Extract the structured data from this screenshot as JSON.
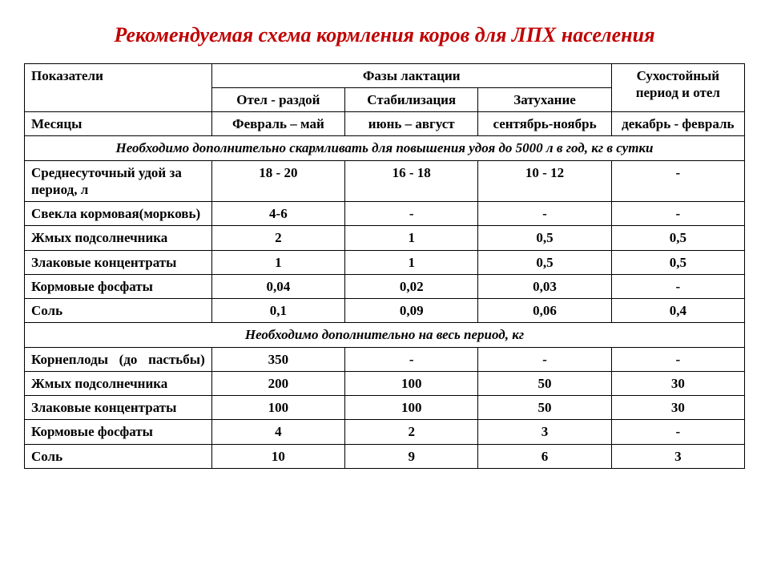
{
  "title": "Рекомендуемая схема кормления коров для ЛПХ населения",
  "table": {
    "type": "table",
    "background_color": "#ffffff",
    "border_color": "#000000",
    "title_color": "#c00000",
    "title_fontsize": 26,
    "cell_fontsize": 17,
    "font_family": "Times New Roman",
    "headers": {
      "indicators": "Показатели",
      "lactation_phases": "Фазы лактации",
      "dry_period": "Сухостойный период и отел",
      "sub": {
        "otel_razdoy": "Отел - раздой",
        "stabilization": "Стабилизация",
        "decay": "Затухание"
      }
    },
    "months_row": {
      "label": "Месяцы",
      "values": [
        "Февраль – май",
        "июнь – август",
        "сентябрь-ноябрь",
        "декабрь - февраль"
      ]
    },
    "section1": "Необходимо дополнительно скармливать для повышения удоя до 5000 л в год, кг в сутки",
    "section2": "Необходимо дополнительно на весь период, кг",
    "rows1": [
      {
        "label": "Среднесуточный удой за период, л",
        "values": [
          "18 - 20",
          "16 - 18",
          "10 - 12",
          "-"
        ]
      },
      {
        "label": "Свекла кормовая(морковь)",
        "values": [
          "4-6",
          "-",
          "-",
          "-"
        ]
      },
      {
        "label": "Жмых подсолнечника",
        "values": [
          "2",
          "1",
          "0,5",
          "0,5"
        ]
      },
      {
        "label": "Злаковые концентраты",
        "values": [
          "1",
          "1",
          "0,5",
          "0,5"
        ]
      },
      {
        "label": "Кормовые фосфаты",
        "values": [
          "0,04",
          "0,02",
          "0,03",
          "-"
        ]
      },
      {
        "label": "Соль",
        "values": [
          "0,1",
          "0,09",
          "0,06",
          "0,4"
        ]
      }
    ],
    "rows2": [
      {
        "label": "Корнеплоды (до пастьбы)",
        "justify": true,
        "values": [
          "350",
          "-",
          "-",
          "-"
        ]
      },
      {
        "label": "Жмых подсолнечника",
        "values": [
          "200",
          "100",
          "50",
          "30"
        ]
      },
      {
        "label": "Злаковые концентраты",
        "values": [
          "100",
          "100",
          "50",
          "30"
        ]
      },
      {
        "label": "Кормовые фосфаты",
        "values": [
          "4",
          "2",
          "3",
          "-"
        ]
      },
      {
        "label": "Соль",
        "values": [
          "10",
          "9",
          "6",
          "3"
        ]
      }
    ],
    "column_widths_pct": [
      26,
      18.5,
      18.5,
      18.5,
      18.5
    ]
  }
}
